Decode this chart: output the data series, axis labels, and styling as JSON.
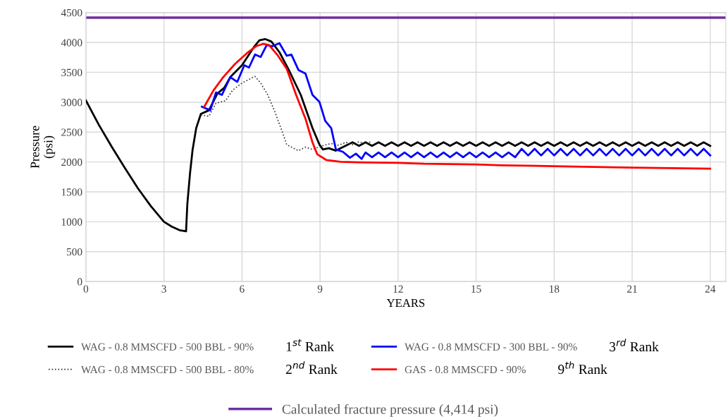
{
  "chart_data": {
    "type": "line",
    "xlabel": "YEARS",
    "ylabel": "Pressure\n(psi)",
    "xlim": [
      0,
      24.6
    ],
    "xticks": [
      0,
      3,
      6,
      9,
      12,
      15,
      18,
      21,
      24
    ],
    "ylim": [
      0,
      4500
    ],
    "yticks": [
      0,
      500,
      1000,
      1500,
      2000,
      2500,
      3000,
      3500,
      4000,
      4500
    ],
    "grid": true,
    "legend": "bottom",
    "series": [
      {
        "name": "WAG - 0.8 MMSCFD - 500 BBL - 90%",
        "color": "#000000",
        "line_style": "solid",
        "x": [
          0,
          0.5,
          1,
          1.5,
          2,
          2.5,
          3,
          3.3,
          3.6,
          3.85,
          3.9,
          4.0,
          4.1,
          4.24,
          4.42,
          4.73,
          5.05,
          5.32,
          5.55,
          6.0,
          6.45,
          6.67,
          6.9,
          7.13,
          7.44,
          7.8,
          8.26,
          8.71,
          8.98,
          9.11,
          9.34,
          9.61,
          9.88,
          10.25,
          10.5,
          10.75,
          11,
          11.25,
          11.5,
          11.75,
          12,
          12.25,
          12.5,
          12.75,
          13,
          13.25,
          13.5,
          13.75,
          14,
          14.25,
          14.5,
          14.75,
          15,
          15.25,
          15.5,
          15.75,
          16,
          16.25,
          16.5,
          16.75,
          17,
          17.25,
          17.5,
          17.75,
          18,
          18.25,
          18.5,
          18.75,
          19,
          19.25,
          19.5,
          19.75,
          20,
          20.25,
          20.5,
          20.75,
          21,
          21.25,
          21.5,
          21.75,
          22,
          22.25,
          22.5,
          22.75,
          23,
          23.25,
          23.5,
          23.75,
          24
        ],
        "values": [
          3030,
          2620,
          2250,
          1900,
          1560,
          1260,
          1000,
          920,
          860,
          840,
          1300,
          1800,
          2200,
          2567,
          2805,
          2865,
          3143,
          3242,
          3420,
          3619,
          3917,
          4036,
          4056,
          4016,
          3837,
          3540,
          3123,
          2568,
          2290,
          2210,
          2230,
          2190,
          2250,
          2330,
          2270,
          2330,
          2270,
          2330,
          2270,
          2330,
          2270,
          2330,
          2270,
          2330,
          2270,
          2330,
          2270,
          2330,
          2270,
          2330,
          2270,
          2330,
          2270,
          2330,
          2270,
          2330,
          2270,
          2330,
          2270,
          2330,
          2270,
          2330,
          2270,
          2330,
          2270,
          2330,
          2270,
          2330,
          2270,
          2330,
          2270,
          2330,
          2270,
          2330,
          2270,
          2330,
          2270,
          2330,
          2270,
          2330,
          2270,
          2330,
          2270,
          2330,
          2270,
          2330,
          2270,
          2330,
          2270
        ]
      },
      {
        "name": "WAG - 0.8 MMSCFD - 500 BBL - 80%",
        "color": "#333333",
        "line_style": "dotted",
        "x": [
          4.42,
          4.73,
          5.0,
          5.37,
          5.64,
          6.0,
          6.5,
          6.72,
          6.99,
          7.26,
          7.53,
          7.72,
          8.17,
          8.44,
          8.71,
          9.07,
          9.43,
          9.7,
          10,
          10.25,
          10.5,
          10.75,
          11
        ],
        "values": [
          2785,
          2766,
          2984,
          3024,
          3202,
          3321,
          3432,
          3321,
          3123,
          2845,
          2527,
          2290,
          2190,
          2250,
          2210,
          2270,
          2310,
          2280,
          2330,
          2290,
          2340,
          2300,
          2350
        ]
      },
      {
        "name": "WAG - 0.8 MMSCFD - 300 BBL - 90%",
        "color": "#0000ff",
        "line_style": "solid",
        "x": [
          4.46,
          4.78,
          5.0,
          5.23,
          5.55,
          5.82,
          6.09,
          6.27,
          6.5,
          6.72,
          6.95,
          7.17,
          7.44,
          7.72,
          7.9,
          8.17,
          8.44,
          8.71,
          8.98,
          9.2,
          9.43,
          9.61,
          9.88,
          10.15,
          10.38,
          10.6,
          10.75,
          11,
          11.25,
          11.5,
          11.75,
          12,
          12.25,
          12.5,
          12.75,
          13,
          13.25,
          13.5,
          13.75,
          14,
          14.25,
          14.5,
          14.75,
          15,
          15.25,
          15.5,
          15.75,
          16,
          16.25,
          16.5,
          16.75,
          17,
          17.25,
          17.5,
          17.75,
          18,
          18.25,
          18.5,
          18.75,
          19,
          19.25,
          19.5,
          19.75,
          20,
          20.25,
          20.5,
          20.75,
          21,
          21.25,
          21.5,
          21.75,
          22,
          22.25,
          22.5,
          22.75,
          23,
          23.25,
          23.5,
          23.75,
          24
        ],
        "values": [
          2924,
          2865,
          3163,
          3123,
          3420,
          3341,
          3619,
          3580,
          3798,
          3758,
          3956,
          3937,
          3988,
          3778,
          3798,
          3540,
          3480,
          3123,
          3004,
          2687,
          2568,
          2210,
          2170,
          2071,
          2139,
          2052,
          2160,
          2080,
          2160,
          2080,
          2160,
          2080,
          2160,
          2080,
          2160,
          2080,
          2160,
          2080,
          2160,
          2080,
          2160,
          2080,
          2160,
          2080,
          2160,
          2080,
          2160,
          2080,
          2160,
          2080,
          2220,
          2110,
          2220,
          2110,
          2220,
          2110,
          2220,
          2110,
          2220,
          2110,
          2220,
          2110,
          2220,
          2110,
          2220,
          2110,
          2220,
          2110,
          2220,
          2110,
          2220,
          2110,
          2220,
          2110,
          2220,
          2110,
          2220,
          2110,
          2220,
          2110
        ]
      },
      {
        "name": "GAS - 0.8 MMSCFD - 90%",
        "color": "#ff0000",
        "line_style": "solid",
        "x": [
          4.55,
          4.91,
          5.28,
          5.73,
          6.18,
          6.54,
          6.81,
          7.04,
          7.35,
          7.72,
          8.08,
          8.44,
          8.71,
          8.89,
          9.25,
          9.79,
          10.5,
          12,
          13,
          15,
          16,
          18,
          21,
          24
        ],
        "values": [
          2925,
          3202,
          3420,
          3639,
          3817,
          3937,
          3976,
          3956,
          3798,
          3560,
          3123,
          2726,
          2329,
          2131,
          2032,
          2004,
          1995,
          1985,
          1970,
          1960,
          1945,
          1930,
          1905,
          1890
        ]
      }
    ],
    "ref_lines": [
      {
        "axis": "y",
        "value": 4414,
        "label": "Calculated fracture pressure (4,414 psi)",
        "color": "#7030a0",
        "line_style": "solid"
      }
    ],
    "annotations": [
      "1$^{st}$ Rank",
      "2$^{nd}$ Rank",
      "3$^{rd}$ Rank",
      "9$^{th}$ Rank"
    ]
  }
}
